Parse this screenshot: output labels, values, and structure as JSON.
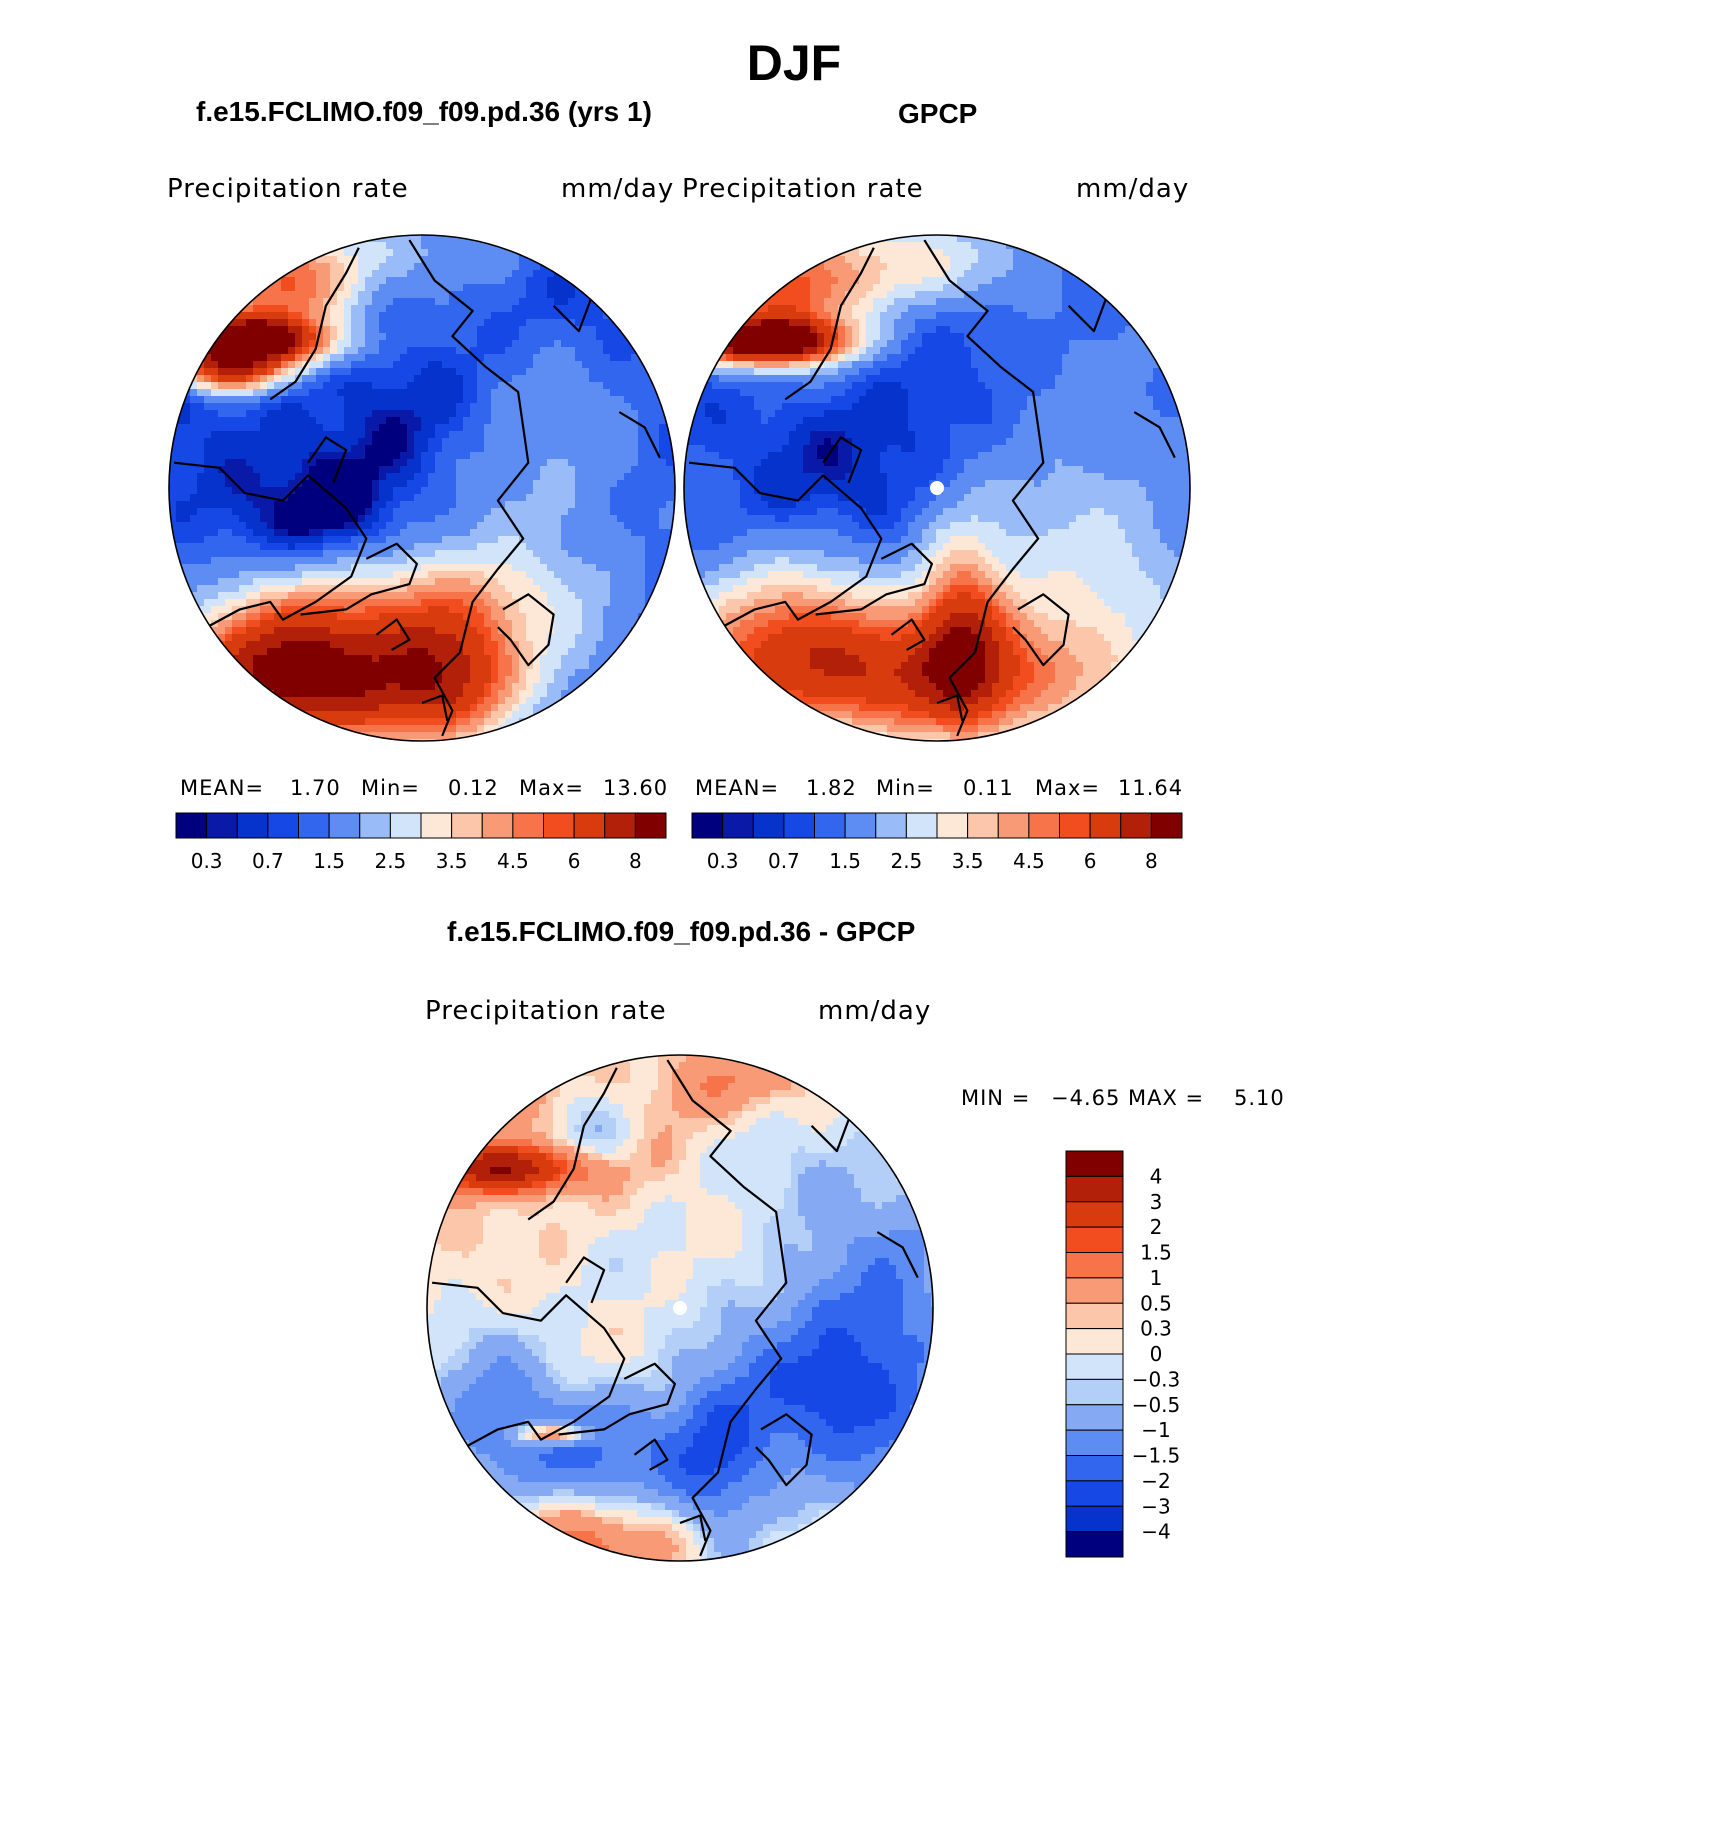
{
  "figure": {
    "season": "DJF",
    "diff_title": "f.e15.FCLIMO.f09_f09.pd.36 - GPCP"
  },
  "panels": [
    {
      "title": "f.e15.FCLIMO.f09_f09.pd.36 (yrs 1)",
      "variable": "Precipitation  rate",
      "units": "mm/day",
      "stats": {
        "mean_label": "MEAN=",
        "mean": "1.70",
        "min_label": "Min=",
        "min": "0.12",
        "max_label": "Max=",
        "max": "13.60"
      },
      "pattern": "model"
    },
    {
      "title": "GPCP",
      "variable": "Precipitation  rate",
      "units": "mm/day",
      "stats": {
        "mean_label": "MEAN=",
        "mean": "1.82",
        "min_label": "Min=",
        "min": "0.11",
        "max_label": "Max=",
        "max": "11.64"
      },
      "pattern": "obs"
    },
    {
      "variable": "Precipitation  rate",
      "units": "mm/day",
      "stats": {
        "min_label": "MIN =",
        "min": "−4.65",
        "max_label": "MAX =",
        "max": "5.10"
      },
      "pattern": "diff"
    }
  ],
  "colorbars": {
    "precip": {
      "labels": [
        "0.3",
        "0.7",
        "1.5",
        "2.5",
        "3.5",
        "4.5",
        "6",
        "8"
      ],
      "colors": [
        "#00007f",
        "#0a1aa8",
        "#0533cc",
        "#1648e6",
        "#3366ee",
        "#5d8df2",
        "#99bbf7",
        "#d1e4fa",
        "#fde8d8",
        "#fbc6aa",
        "#f89a76",
        "#f7744b",
        "#f24d1f",
        "#d83b0e",
        "#b3200a",
        "#800000"
      ]
    },
    "diff": {
      "labels": [
        "4",
        "3",
        "2",
        "1.5",
        "1",
        "0.5",
        "0.3",
        "0",
        "−0.3",
        "−0.5",
        "−1",
        "−1.5",
        "−2",
        "−3",
        "−4"
      ],
      "colors": [
        "#800000",
        "#b3200a",
        "#d83b0e",
        "#f24d1f",
        "#f7744b",
        "#f89a76",
        "#fbc6aa",
        "#fde8d8",
        "#d1e4fa",
        "#b3cff8",
        "#86a9f3",
        "#5d8df2",
        "#3366ee",
        "#1648e6",
        "#0533cc",
        "#00007f"
      ]
    }
  }
}
